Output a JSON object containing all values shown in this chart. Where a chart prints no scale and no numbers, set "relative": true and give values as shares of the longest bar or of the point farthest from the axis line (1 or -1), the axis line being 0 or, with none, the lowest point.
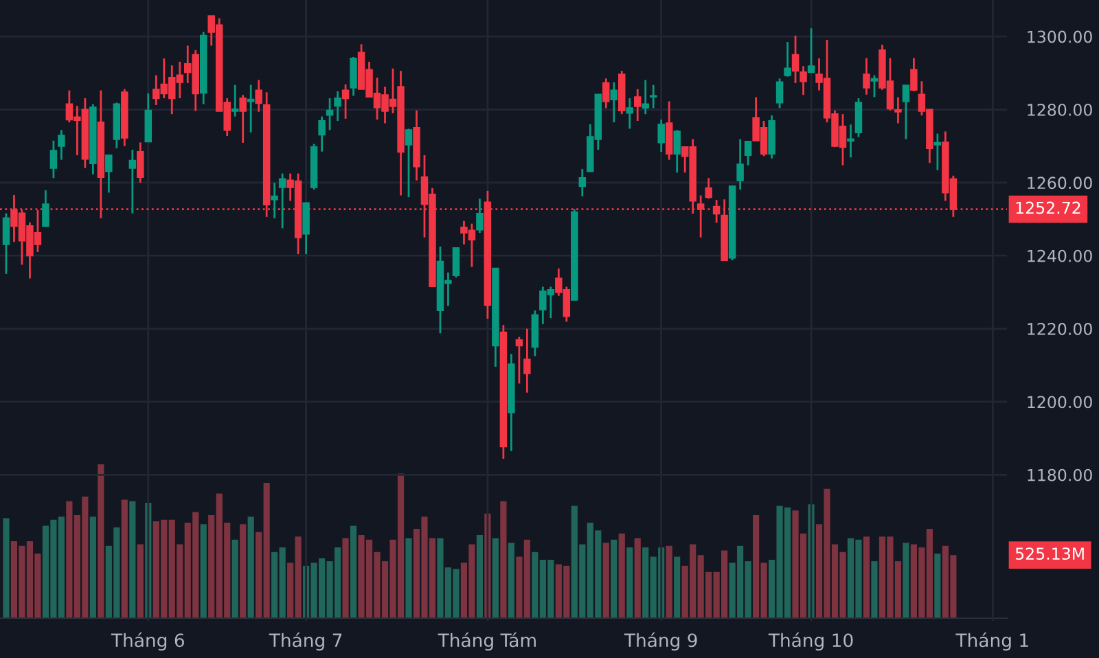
{
  "chart_data": [
    {
      "type": "candlestick",
      "categories": [
        null,
        null,
        null,
        null,
        null,
        null,
        null,
        null,
        null,
        null,
        null,
        null,
        null,
        null,
        null,
        null,
        null,
        null,
        "Tháng 6",
        null,
        null,
        null,
        null,
        null,
        null,
        null,
        null,
        null,
        null,
        null,
        null,
        null,
        null,
        null,
        null,
        null,
        null,
        null,
        "Tháng 7",
        null,
        null,
        null,
        null,
        null,
        null,
        null,
        null,
        null,
        null,
        null,
        null,
        null,
        null,
        null,
        null,
        null,
        null,
        null,
        null,
        null,
        null,
        "Tháng Tám",
        null,
        null,
        null,
        null,
        null,
        null,
        null,
        null,
        null,
        null,
        null,
        null,
        null,
        null,
        null,
        null,
        null,
        null,
        null,
        null,
        null,
        "Tháng 9",
        null,
        null,
        null,
        null,
        null,
        null,
        null,
        null,
        null,
        null,
        null,
        null,
        null,
        null,
        null,
        null,
        null,
        null,
        "Tháng 10",
        null,
        null,
        null,
        null,
        null,
        null,
        null,
        null,
        null,
        null,
        null,
        null,
        null,
        null,
        null,
        null,
        null,
        null,
        null,
        null,
        null,
        null,
        "Tháng 1",
        null
      ],
      "ohlc": [
        [
          1243.1,
          1251.6,
          1235,
          1250.25
        ],
        [
          1252.5,
          1256.6,
          1243.75,
          1248.1
        ],
        [
          1251.6,
          1252.5,
          1237.5,
          1244.1
        ],
        [
          1248.1,
          1249.1,
          1233.75,
          1240
        ],
        [
          1246.25,
          1252.5,
          1241,
          1243.1
        ],
        [
          1248.1,
          1257.9,
          1248.1,
          1254.1
        ],
        [
          1264,
          1271.5,
          1261.25,
          1268.75
        ],
        [
          1270,
          1274.4,
          1266.25,
          1272.9
        ],
        [
          1281.5,
          1285.25,
          1276.5,
          1277.25
        ],
        [
          1277.9,
          1281,
          1267.5,
          1277.1
        ],
        [
          1280,
          1283.1,
          1264,
          1266.5
        ],
        [
          1265.25,
          1281.5,
          1262.25,
          1280.6
        ],
        [
          1276.5,
          1285.25,
          1250.25,
          1261.5
        ],
        [
          1263.1,
          1267.5,
          1257.25,
          1267.5
        ],
        [
          1271.9,
          1281.9,
          1269.4,
          1281.5
        ],
        [
          1284.75,
          1285.6,
          1270,
          1272.25
        ],
        [
          1264,
          1269,
          1251.6,
          1266
        ],
        [
          1268.4,
          1271,
          1260,
          1261.5
        ],
        [
          1271.25,
          1284.4,
          1271.25,
          1279.75
        ],
        [
          1285.5,
          1289.4,
          1281.25,
          1283.1
        ],
        [
          1286.9,
          1294,
          1283.1,
          1284.4
        ],
        [
          1288.75,
          1292.1,
          1278.75,
          1283.1
        ],
        [
          1289.4,
          1293.1,
          1283.1,
          1287.5
        ],
        [
          1292.5,
          1297.5,
          1287.25,
          1290.25
        ],
        [
          1295,
          1296.25,
          1279.6,
          1284.4
        ],
        [
          1284.6,
          1301.25,
          1281.5,
          1300.25
        ],
        [
          1305.6,
          1305.6,
          1297.5,
          1301.25
        ],
        [
          1303.1,
          1305,
          1279.6,
          1279.6
        ],
        [
          1281.9,
          1283.1,
          1272.75,
          1274.4
        ],
        [
          1279.6,
          1286.75,
          1278.1,
          1280.1
        ],
        [
          1283.1,
          1284,
          1270.9,
          1279.6
        ],
        [
          1282.25,
          1286.75,
          1273.75,
          1282.75
        ],
        [
          1285.25,
          1288.1,
          1279.4,
          1281.75
        ],
        [
          1281.25,
          1284.75,
          1250.6,
          1254
        ],
        [
          1255.4,
          1260,
          1250.25,
          1256.25
        ],
        [
          1258.75,
          1262.5,
          1247.5,
          1261
        ],
        [
          1260.6,
          1262.5,
          1255,
          1258.75
        ],
        [
          1260.4,
          1262.5,
          1240.4,
          1245
        ],
        [
          1246,
          1254.4,
          1240.4,
          1254.4
        ],
        [
          1258.75,
          1270.6,
          1258.1,
          1269.75
        ],
        [
          1273.1,
          1278.1,
          1268.5,
          1276.9
        ],
        [
          1278.5,
          1283.1,
          1274.4,
          1279.75
        ],
        [
          1281,
          1285,
          1276.9,
          1283.1
        ],
        [
          1285.25,
          1286.9,
          1277.5,
          1283.1
        ],
        [
          1286,
          1294.4,
          1283.75,
          1294
        ],
        [
          1295.6,
          1297.9,
          1285.6,
          1285.6
        ],
        [
          1290.9,
          1293.1,
          1283.5,
          1283.5
        ],
        [
          1284.4,
          1288.75,
          1277.25,
          1280.6
        ],
        [
          1284,
          1286.25,
          1276.25,
          1279.6
        ],
        [
          1282.75,
          1291.25,
          1279,
          1280.9
        ],
        [
          1286.25,
          1290.6,
          1256.5,
          1268.4
        ],
        [
          1270.4,
          1274.75,
          1256,
          1274.4
        ],
        [
          1275,
          1279.75,
          1260.6,
          1264.4
        ],
        [
          1261.5,
          1267.5,
          1245,
          1254.1
        ],
        [
          1256.75,
          1258.5,
          1231.6,
          1231.6
        ],
        [
          1225,
          1242.5,
          1218.75,
          1238.4
        ],
        [
          1232.5,
          1235.4,
          1226.25,
          1233.1
        ],
        [
          1234.6,
          1242.1,
          1234,
          1242.1
        ],
        [
          1247.75,
          1249.5,
          1243.1,
          1246.25
        ],
        [
          1246.9,
          1248.75,
          1236.9,
          1244.4
        ],
        [
          1247.1,
          1255.6,
          1246.25,
          1251.5
        ],
        [
          1254.6,
          1257.75,
          1222.75,
          1226.5
        ],
        [
          1215.4,
          1236.5,
          1209.6,
          1236.5
        ],
        [
          1219,
          1221,
          1184.4,
          1187.75
        ],
        [
          1197.1,
          1213.1,
          1186.5,
          1210.25
        ],
        [
          1216.9,
          1217.75,
          1205,
          1215.4
        ],
        [
          1211.6,
          1220,
          1202.5,
          1207.75
        ],
        [
          1215,
          1225,
          1212.5,
          1223.75
        ],
        [
          1225.25,
          1231.5,
          1221.25,
          1230.25
        ],
        [
          1229.4,
          1231.5,
          1222.9,
          1230.6
        ],
        [
          1233.75,
          1236.5,
          1229,
          1230
        ],
        [
          1230.6,
          1231.5,
          1221.9,
          1223.4
        ],
        [
          1227.9,
          1252.75,
          1227.9,
          1251.9
        ],
        [
          1259,
          1263.75,
          1256.25,
          1261.25
        ],
        [
          1263.1,
          1276,
          1263.1,
          1272.5
        ],
        [
          1271.9,
          1284.1,
          1269,
          1284.1
        ],
        [
          1287.25,
          1288.5,
          1280.4,
          1282.25
        ],
        [
          1282.75,
          1287.5,
          1276.5,
          1285.25
        ],
        [
          1289.6,
          1290.6,
          1278.75,
          1279.75
        ],
        [
          1279.1,
          1283.1,
          1274.75,
          1280.4
        ],
        [
          1283.4,
          1285.6,
          1276.9,
          1280.9
        ],
        [
          1280.5,
          1288.1,
          1278.75,
          1281.5
        ],
        [
          1283.5,
          1286.75,
          1280.4,
          1283.75
        ],
        [
          1271,
          1277.25,
          1268.4,
          1275.9
        ],
        [
          1276.25,
          1282.25,
          1266.25,
          1267.9
        ],
        [
          1267.9,
          1274.4,
          1262.75,
          1274
        ],
        [
          1269.75,
          1269.75,
          1262.75,
          1267.25
        ],
        [
          1269.75,
          1271.9,
          1251.5,
          1255
        ],
        [
          1254.1,
          1256.5,
          1245,
          1252.75
        ],
        [
          1258.5,
          1261.25,
          1255.6,
          1256
        ],
        [
          1253.4,
          1255.25,
          1249,
          1251.5
        ],
        [
          1251,
          1255.4,
          1238.75,
          1238.75
        ],
        [
          1239.4,
          1259,
          1238.75,
          1259
        ],
        [
          1260.6,
          1271.9,
          1258.1,
          1265
        ],
        [
          1267.5,
          1271.25,
          1264.75,
          1271.25
        ],
        [
          1277.75,
          1283.4,
          1271.5,
          1271.5
        ],
        [
          1275,
          1276.9,
          1267.25,
          1267.9
        ],
        [
          1267.9,
          1278.4,
          1266.6,
          1276.9
        ],
        [
          1281.9,
          1288.5,
          1280.4,
          1287.5
        ],
        [
          1289.4,
          1298.5,
          1289,
          1291.25
        ],
        [
          1295,
          1300.25,
          1287.25,
          1290.6
        ],
        [
          1290.25,
          1291.9,
          1284,
          1287.75
        ],
        [
          1290.25,
          1302.25,
          1290.25,
          1291.9
        ],
        [
          1289.6,
          1294,
          1285.25,
          1287.5
        ],
        [
          1288.5,
          1299.1,
          1276.5,
          1277.75
        ],
        [
          1278.75,
          1279.75,
          1269.75,
          1270
        ],
        [
          1275.4,
          1278.75,
          1264.75,
          1269.75
        ],
        [
          1271.4,
          1275.9,
          1266.9,
          1271.9
        ],
        [
          1273.75,
          1283.1,
          1272.5,
          1281.9
        ],
        [
          1289.6,
          1294.1,
          1284.1,
          1286
        ],
        [
          1287.9,
          1289.4,
          1283.4,
          1288.4
        ],
        [
          1296.25,
          1297.75,
          1285.4,
          1286
        ],
        [
          1287.75,
          1294.1,
          1279.75,
          1280.25
        ],
        [
          1279.9,
          1283.4,
          1276.25,
          1279.4
        ],
        [
          1282.25,
          1286.6,
          1271.9,
          1286.6
        ],
        [
          1290.9,
          1294.1,
          1285,
          1285.4
        ],
        [
          1284.1,
          1287.75,
          1278.4,
          1279.6
        ],
        [
          1280,
          1280,
          1265.4,
          1269.4
        ],
        [
          1270.4,
          1273.4,
          1263.4,
          1270.9
        ],
        [
          1271,
          1274,
          1255,
          1257.25
        ],
        [
          1261,
          1261.9,
          1250.6,
          1252.72
        ],
        null,
        null,
        null,
        null,
        null,
        null
      ],
      "colors": [
        "#089981",
        "#f23645",
        "#f23645",
        "#f23645",
        "#f23645",
        "#089981",
        "#089981",
        "#089981",
        "#f23645",
        "#f23645",
        "#f23645",
        "#089981",
        "#f23645",
        "#089981",
        "#089981",
        "#f23645",
        "#089981",
        "#f23645",
        "#089981",
        "#f23645",
        "#f23645",
        "#f23645",
        "#f23645",
        "#f23645",
        "#f23645",
        "#089981",
        "#f23645",
        "#f23645",
        "#f23645",
        "#089981",
        "#f23645",
        "#089981",
        "#f23645",
        "#f23645",
        "#089981",
        "#089981",
        "#f23645",
        "#f23645",
        "#089981",
        "#089981",
        "#089981",
        "#089981",
        "#089981",
        "#f23645",
        "#089981",
        "#f23645",
        "#f23645",
        "#f23645",
        "#f23645",
        "#f23645",
        "#f23645",
        "#089981",
        "#f23645",
        "#f23645",
        "#f23645",
        "#089981",
        "#089981",
        "#089981",
        "#f23645",
        "#f23645",
        "#089981",
        "#f23645",
        "#089981",
        "#f23645",
        "#089981",
        "#f23645",
        "#f23645",
        "#089981",
        "#089981",
        "#089981",
        "#f23645",
        "#f23645",
        "#089981",
        "#089981",
        "#089981",
        "#089981",
        "#f23645",
        "#089981",
        "#f23645",
        "#089981",
        "#f23645",
        "#089981",
        "#089981",
        "#089981",
        "#f23645",
        "#089981",
        "#f23645",
        "#f23645",
        "#f23645",
        "#f23645",
        "#f23645",
        "#f23645",
        "#089981",
        "#089981",
        "#089981",
        "#f23645",
        "#f23645",
        "#089981",
        "#089981",
        "#089981",
        "#f23645",
        "#f23645",
        "#089981",
        "#f23645",
        "#f23645",
        "#f23645",
        "#f23645",
        "#089981",
        "#089981",
        "#f23645",
        "#089981",
        "#f23645",
        "#f23645",
        "#f23645",
        "#089981",
        "#f23645",
        "#f23645",
        "#f23645",
        "#089981",
        "#f23645",
        "#f23645",
        null,
        null,
        null,
        null,
        null,
        null
      ],
      "ylim": [
        1140,
        1310
      ],
      "yticks": [
        {
          "value": 1180,
          "label": "1180.00"
        },
        {
          "value": 1200,
          "label": "1200.00"
        },
        {
          "value": 1220,
          "label": "1220.00"
        },
        {
          "value": 1240,
          "label": "1240.00"
        },
        {
          "value": 1260,
          "label": "1260.00"
        },
        {
          "value": 1280,
          "label": "1280.00"
        },
        {
          "value": 1300,
          "label": "1300.00"
        }
      ],
      "ref_lines": [
        {
          "axis": "y",
          "value": 1252.72,
          "label": "1252.72",
          "color": "#f23645",
          "line_style": "dotted"
        }
      ],
      "grid": true
    },
    {
      "type": "bar",
      "relative": true,
      "categories": [
        null,
        null,
        null,
        null,
        null,
        null,
        null,
        null,
        null,
        null,
        null,
        null,
        null,
        null,
        null,
        null,
        null,
        null,
        null,
        null,
        null,
        null,
        null,
        null,
        null,
        null,
        null,
        null,
        null,
        null,
        null,
        null,
        null,
        null,
        null,
        null,
        null,
        null,
        null,
        null,
        null,
        null,
        null,
        null,
        null,
        null,
        null,
        null,
        null,
        null,
        null,
        null,
        null,
        null,
        null,
        null,
        null,
        null,
        null,
        null,
        null,
        null,
        null,
        null,
        null,
        null,
        null,
        null,
        null,
        null,
        null,
        null,
        null,
        null,
        null,
        null,
        null,
        null,
        null,
        null,
        null,
        null,
        null,
        null,
        null,
        null,
        null,
        null,
        null,
        null,
        null,
        null,
        null,
        null,
        null,
        null,
        null,
        null,
        null,
        null,
        null,
        null,
        null,
        null,
        null,
        null,
        null,
        null,
        null,
        null,
        null,
        null,
        null,
        null,
        null,
        null,
        null,
        null,
        null,
        null,
        null,
        null,
        null,
        null,
        null,
        null,
        null
      ],
      "values": [
        0.65,
        0.5,
        0.47,
        0.5,
        0.42,
        0.6,
        0.64,
        0.66,
        0.76,
        0.67,
        0.79,
        0.66,
        1,
        0.47,
        0.59,
        0.77,
        0.76,
        0.48,
        0.75,
        0.63,
        0.64,
        0.64,
        0.48,
        0.62,
        0.69,
        0.61,
        0.67,
        0.81,
        0.62,
        0.51,
        0.61,
        0.66,
        0.56,
        0.88,
        0.43,
        0.46,
        0.36,
        0.53,
        0.34,
        0.36,
        0.39,
        0.37,
        0.46,
        0.52,
        0.6,
        0.54,
        0.51,
        0.43,
        0.37,
        0.51,
        0.94,
        0.52,
        0.58,
        0.66,
        0.52,
        0.52,
        0.33,
        0.32,
        0.36,
        0.48,
        0.54,
        0.68,
        0.52,
        0.76,
        0.49,
        0.4,
        0.51,
        0.43,
        0.38,
        0.38,
        0.35,
        0.34,
        0.73,
        0.48,
        0.62,
        0.57,
        0.49,
        0.51,
        0.55,
        0.46,
        0.52,
        0.46,
        0.4,
        0.46,
        0.47,
        0.4,
        0.34,
        0.48,
        0.41,
        0.3,
        0.3,
        0.44,
        0.36,
        0.47,
        0.37,
        0.67,
        0.36,
        0.38,
        0.73,
        0.72,
        0.7,
        0.55,
        0.74,
        0.61,
        0.84,
        0.48,
        0.43,
        0.52,
        0.51,
        0.53,
        0.37,
        0.53,
        0.53,
        0.37,
        0.49,
        0.48,
        0.46,
        0.58,
        0.42,
        0.47,
        0.41,
        null,
        null,
        null,
        null,
        null,
        null
      ],
      "colors": [
        "#21665b",
        "#7d3340",
        "#7d3340",
        "#7d3340",
        "#7d3340",
        "#21665b",
        "#21665b",
        "#21665b",
        "#7d3340",
        "#7d3340",
        "#7d3340",
        "#21665b",
        "#7d3340",
        "#21665b",
        "#21665b",
        "#7d3340",
        "#21665b",
        "#7d3340",
        "#21665b",
        "#7d3340",
        "#7d3340",
        "#7d3340",
        "#7d3340",
        "#7d3340",
        "#7d3340",
        "#21665b",
        "#7d3340",
        "#7d3340",
        "#7d3340",
        "#21665b",
        "#7d3340",
        "#21665b",
        "#7d3340",
        "#7d3340",
        "#21665b",
        "#21665b",
        "#7d3340",
        "#7d3340",
        "#21665b",
        "#21665b",
        "#21665b",
        "#21665b",
        "#21665b",
        "#7d3340",
        "#21665b",
        "#7d3340",
        "#7d3340",
        "#7d3340",
        "#7d3340",
        "#7d3340",
        "#7d3340",
        "#21665b",
        "#7d3340",
        "#7d3340",
        "#7d3340",
        "#21665b",
        "#21665b",
        "#21665b",
        "#7d3340",
        "#7d3340",
        "#21665b",
        "#7d3340",
        "#21665b",
        "#7d3340",
        "#21665b",
        "#7d3340",
        "#7d3340",
        "#21665b",
        "#21665b",
        "#21665b",
        "#7d3340",
        "#7d3340",
        "#21665b",
        "#21665b",
        "#21665b",
        "#21665b",
        "#7d3340",
        "#21665b",
        "#7d3340",
        "#21665b",
        "#7d3340",
        "#21665b",
        "#21665b",
        "#21665b",
        "#7d3340",
        "#21665b",
        "#7d3340",
        "#7d3340",
        "#7d3340",
        "#7d3340",
        "#7d3340",
        "#7d3340",
        "#21665b",
        "#21665b",
        "#21665b",
        "#7d3340",
        "#7d3340",
        "#21665b",
        "#21665b",
        "#21665b",
        "#7d3340",
        "#7d3340",
        "#21665b",
        "#7d3340",
        "#7d3340",
        "#7d3340",
        "#7d3340",
        "#21665b",
        "#21665b",
        "#7d3340",
        "#21665b",
        "#7d3340",
        "#7d3340",
        "#7d3340",
        "#21665b",
        "#7d3340",
        "#7d3340",
        "#7d3340",
        "#21665b",
        "#7d3340",
        "#7d3340",
        null,
        null,
        null,
        null,
        null,
        null
      ],
      "annotations": [
        "525.13M"
      ]
    }
  ]
}
